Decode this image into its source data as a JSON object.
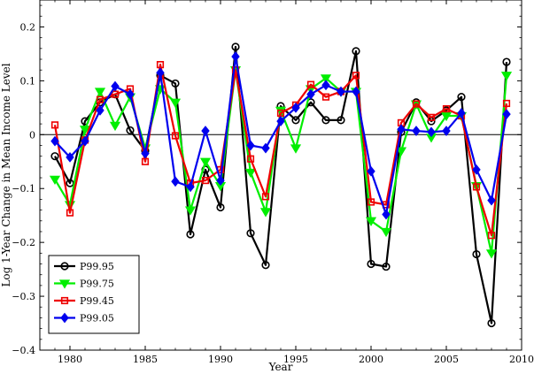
{
  "chart_data": {
    "type": "line",
    "xlabel": "Year",
    "ylabel": "Log 1-Year Change in Mean Income Level",
    "xlim": [
      1978,
      2010
    ],
    "ylim": [
      -0.4,
      0.25
    ],
    "x_ticks": [
      1980,
      1985,
      1990,
      1995,
      2000,
      2005,
      2010
    ],
    "y_ticks": [
      -0.4,
      -0.3,
      -0.2,
      -0.1,
      0,
      0.1,
      0.2
    ],
    "x_tick_labels": [
      "1980",
      "1985",
      "1990",
      "1995",
      "2000",
      "2005",
      "2010"
    ],
    "y_tick_labels": [
      "−0.4",
      "−0.3",
      "−0.2",
      "−0.1",
      "0",
      "0.1",
      "0.2"
    ],
    "zero_line": true,
    "grid": false,
    "legend_position": "bottom-left",
    "x": [
      1979,
      1980,
      1981,
      1982,
      1983,
      1984,
      1985,
      1986,
      1987,
      1988,
      1989,
      1990,
      1991,
      1992,
      1993,
      1994,
      1995,
      1996,
      1997,
      1998,
      1999,
      2000,
      2001,
      2002,
      2003,
      2004,
      2005,
      2006,
      2007,
      2008,
      2009
    ],
    "series": [
      {
        "name": "P99.95",
        "color": "#000000",
        "marker": "circle",
        "values": [
          -0.04,
          -0.09,
          0.025,
          0.06,
          0.075,
          0.008,
          -0.03,
          0.11,
          0.095,
          -0.185,
          -0.065,
          -0.135,
          0.163,
          -0.183,
          -0.242,
          0.053,
          0.027,
          0.06,
          0.027,
          0.027,
          0.155,
          -0.24,
          -0.245,
          0.005,
          0.06,
          0.025,
          0.045,
          0.07,
          -0.222,
          -0.35,
          0.135
        ]
      },
      {
        "name": "P99.75",
        "color": "#00ee00",
        "marker": "triangle-down",
        "values": [
          -0.083,
          -0.13,
          0.01,
          0.08,
          0.017,
          0.07,
          -0.025,
          0.085,
          0.06,
          -0.14,
          -0.05,
          -0.095,
          0.12,
          -0.07,
          -0.143,
          0.045,
          -0.025,
          0.085,
          0.105,
          0.08,
          0.08,
          -0.16,
          -0.18,
          -0.03,
          0.057,
          -0.005,
          0.035,
          0.035,
          -0.095,
          -0.22,
          0.11
        ]
      },
      {
        "name": "P99.45",
        "color": "#ee0000",
        "marker": "square",
        "values": [
          0.018,
          -0.145,
          -0.01,
          0.065,
          0.075,
          0.085,
          -0.05,
          0.13,
          -0.002,
          -0.09,
          -0.085,
          -0.065,
          0.12,
          -0.045,
          -0.115,
          0.04,
          0.055,
          0.093,
          0.07,
          0.08,
          0.11,
          -0.125,
          -0.13,
          0.022,
          0.057,
          0.032,
          0.048,
          0.035,
          -0.097,
          -0.187,
          0.058
        ]
      },
      {
        "name": "P99.05",
        "color": "#0000ee",
        "marker": "diamond",
        "values": [
          -0.012,
          -0.042,
          -0.012,
          0.045,
          0.09,
          0.075,
          -0.035,
          0.115,
          -0.087,
          -0.097,
          0.007,
          -0.085,
          0.145,
          -0.02,
          -0.025,
          0.025,
          0.05,
          0.075,
          0.092,
          0.08,
          0.08,
          -0.068,
          -0.148,
          0.01,
          0.007,
          0.005,
          0.007,
          0.04,
          -0.065,
          -0.122,
          0.038
        ]
      }
    ]
  }
}
